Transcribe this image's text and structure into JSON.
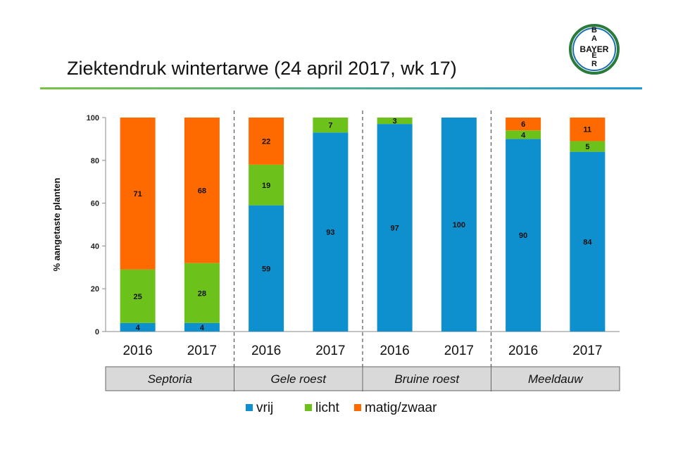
{
  "title": "Ziektendruk wintertarwe (24 april 2017, wk 17)",
  "logo": {
    "text_horizontal": "BAYER",
    "text_vertical": "BAYER",
    "ring_color": "#2a7a3b"
  },
  "chart_data": {
    "type": "bar",
    "stacked": true,
    "ylabel": "% aangetaste planten",
    "ylim": [
      0,
      100
    ],
    "yticks": [
      0,
      20,
      40,
      60,
      80,
      100
    ],
    "grid": false,
    "legend_position": "bottom",
    "groups": [
      {
        "name": "Septoria",
        "categories": [
          "2016",
          "2017"
        ]
      },
      {
        "name": "Gele roest",
        "categories": [
          "2016",
          "2017"
        ]
      },
      {
        "name": "Bruine roest",
        "categories": [
          "2016",
          "2017"
        ]
      },
      {
        "name": "Meeldauw",
        "categories": [
          "2016",
          "2017"
        ]
      }
    ],
    "series": [
      {
        "name": "vrij",
        "color": "#0e8fce",
        "values": [
          4,
          4,
          59,
          93,
          97,
          100,
          90,
          84
        ],
        "labels": [
          "4",
          "4",
          "59",
          "93",
          "97",
          "100",
          "90",
          "84"
        ]
      },
      {
        "name": "licht",
        "color": "#6cc21b",
        "values": [
          25,
          28,
          19,
          7,
          3,
          0,
          4,
          5
        ],
        "labels": [
          "25",
          "28",
          "19",
          "7",
          "3",
          "",
          "4",
          "5"
        ]
      },
      {
        "name": "matig/zwaar",
        "color": "#ff6a00",
        "values": [
          71,
          68,
          22,
          0,
          0,
          0,
          6,
          11
        ],
        "labels": [
          "71",
          "68",
          "22",
          "",
          "",
          "",
          "6",
          "11"
        ]
      }
    ]
  }
}
